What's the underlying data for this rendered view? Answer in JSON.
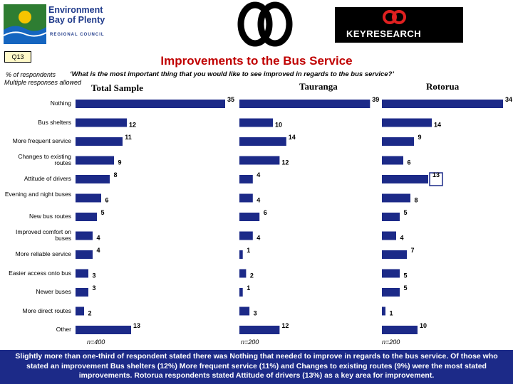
{
  "header": {
    "left_logo_line1": "Environment",
    "left_logo_line2": "Bay of Plenty",
    "left_logo_sub": "REGIONAL COUNCIL",
    "right_logo_text": "KEYRESEARCH"
  },
  "question_number": "Q13",
  "title": "Improvements to the Bus Service",
  "respondents_note": "% of respondents",
  "question_text": "‘What is the most important thing that you would like to see improved in regards to the bus service?’",
  "multiple_note": "Multiple responses allowed",
  "categories": [
    "Nothing",
    "Bus shelters",
    "More frequent service",
    "Changes to existing routes",
    "Attitude of drivers",
    "Evening and night buses",
    "New bus routes",
    "Improved comfort on buses",
    "More reliable service",
    "Easier access onto bus",
    "Newer buses",
    "More direct routes",
    "Other"
  ],
  "chart_data": [
    {
      "type": "bar",
      "title": "Total Sample",
      "orientation": "horizontal",
      "categories": [
        "Nothing",
        "Bus shelters",
        "More frequent service",
        "Changes to existing routes",
        "Attitude of drivers",
        "Evening and night buses",
        "New bus routes",
        "Improved comfort on buses",
        "More reliable service",
        "Easier access onto bus",
        "Newer buses",
        "More direct routes",
        "Other"
      ],
      "values": [
        35,
        12,
        11,
        9,
        8,
        6,
        5,
        4,
        4,
        3,
        3,
        2,
        13
      ],
      "n_label": "n=400",
      "color": "#1c2a88"
    },
    {
      "type": "bar",
      "title": "Tauranga",
      "orientation": "horizontal",
      "categories": [
        "Nothing",
        "Bus shelters",
        "More frequent service",
        "Changes to existing routes",
        "Attitude of drivers",
        "Evening and night buses",
        "New bus routes",
        "Improved comfort on buses",
        "More reliable service",
        "Easier access onto bus",
        "Newer buses",
        "More direct routes",
        "Other"
      ],
      "values": [
        39,
        10,
        14,
        12,
        4,
        4,
        6,
        4,
        1,
        2,
        1,
        3,
        12
      ],
      "n_label": "n=200",
      "color": "#1c2a88"
    },
    {
      "type": "bar",
      "title": "Rotorua",
      "orientation": "horizontal",
      "categories": [
        "Nothing",
        "Bus shelters",
        "More frequent service",
        "Changes to existing routes",
        "Attitude of drivers",
        "Evening and night buses",
        "New bus routes",
        "Improved comfort on buses",
        "More reliable service",
        "Easier access onto bus",
        "Newer buses",
        "More direct routes",
        "Other"
      ],
      "values": [
        34,
        14,
        9,
        6,
        13,
        8,
        5,
        4,
        7,
        5,
        5,
        1,
        10
      ],
      "n_label": "n=200",
      "color": "#1c2a88",
      "highlight_index": 4
    }
  ],
  "summary": "Slightly more than one-third of respondent stated there was Nothing that needed to improve in regards to the bus service. Of those who stated an improvement Bus shelters (12%) More frequent service (11%) and Changes to existing routes (9%) were the most stated improvements. Rotorua respondents stated Attitude of drivers (13%) as a key area for improvement.",
  "colors": {
    "bar": "#1c2a88",
    "title": "#c00000",
    "footer": "#1c2a88"
  }
}
